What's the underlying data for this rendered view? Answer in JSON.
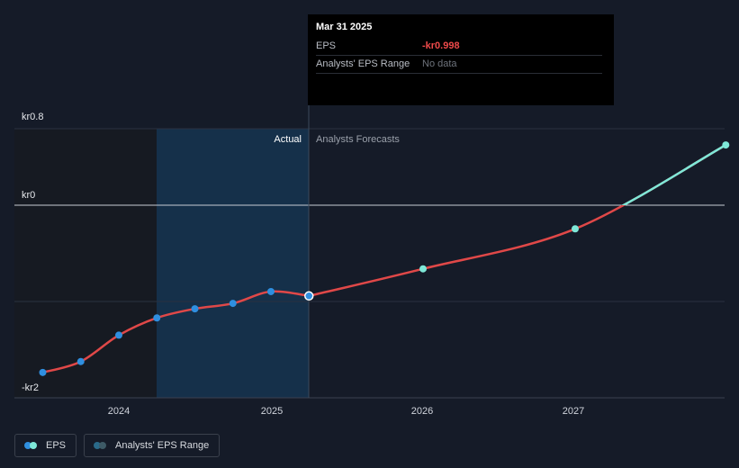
{
  "chart_data": {
    "type": "line",
    "y_axis_labels": [
      "kr0.8",
      "kr0",
      "-kr2"
    ],
    "x_tick_labels": [
      "2024",
      "2025",
      "2026",
      "2027"
    ],
    "region_labels": {
      "actual": "Actual",
      "forecast": "Analysts Forecasts"
    },
    "series": [
      {
        "name": "EPS",
        "actual": [
          {
            "x": 2023.5,
            "y": -1.84
          },
          {
            "x": 2023.75,
            "y": -1.72
          },
          {
            "x": 2024.0,
            "y": -1.43
          },
          {
            "x": 2024.25,
            "y": -1.24
          },
          {
            "x": 2024.5,
            "y": -1.14
          },
          {
            "x": 2024.75,
            "y": -1.08
          },
          {
            "x": 2025.0,
            "y": -0.95
          },
          {
            "x": 2025.25,
            "y": -0.998
          }
        ],
        "forecast": [
          {
            "x": 2025.25,
            "y": -0.998
          },
          {
            "x": 2026.0,
            "y": -0.7
          },
          {
            "x": 2027.0,
            "y": -0.26
          },
          {
            "x": 2027.99,
            "y": 0.63
          }
        ]
      }
    ],
    "colors": {
      "eps_actual_line": "#e04848",
      "eps_forecast_line": "#7ee8d8",
      "actual_dot": "#2f8fe0",
      "forecast_dot": "#7ee8d8",
      "shaded_region": "#15304a"
    },
    "grid": true
  },
  "tooltip": {
    "date": "Mar 31 2025",
    "rows": [
      {
        "label": "EPS",
        "value": "-kr0.998"
      },
      {
        "label": "Analysts' EPS Range",
        "value": "No data"
      }
    ]
  },
  "legend": [
    {
      "label": "EPS"
    },
    {
      "label": "Analysts' EPS Range"
    }
  ]
}
